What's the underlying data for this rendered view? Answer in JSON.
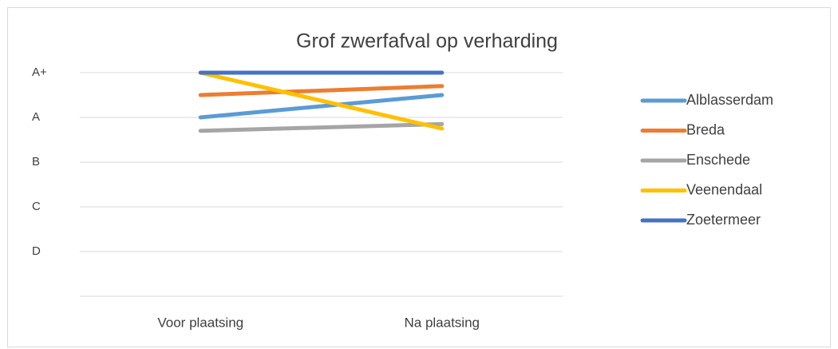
{
  "chart_data": {
    "type": "line",
    "title": "Grof zwerfafval op verharding",
    "categories": [
      "Voor plaatsing",
      "Na plaatsing"
    ],
    "series": [
      {
        "name": "Alblasserdam",
        "color": "#5b9bd5",
        "values": [
          4,
          4.5
        ]
      },
      {
        "name": "Breda",
        "color": "#ed7d31",
        "values": [
          4.5,
          4.7
        ]
      },
      {
        "name": "Enschede",
        "color": "#a5a5a5",
        "values": [
          3.7,
          3.85
        ]
      },
      {
        "name": "Veenendaal",
        "color": "#ffc000",
        "values": [
          5,
          3.75
        ]
      },
      {
        "name": "Zoetermeer",
        "color": "#4472c4",
        "values": [
          5,
          5
        ]
      }
    ],
    "ylim": [
      0,
      5
    ],
    "yticks": [
      {
        "value": 5,
        "label": "A+"
      },
      {
        "value": 4,
        "label": "A"
      },
      {
        "value": 3,
        "label": "B"
      },
      {
        "value": 2,
        "label": "C"
      },
      {
        "value": 1,
        "label": "D"
      }
    ],
    "grid": true,
    "legend": "right"
  }
}
